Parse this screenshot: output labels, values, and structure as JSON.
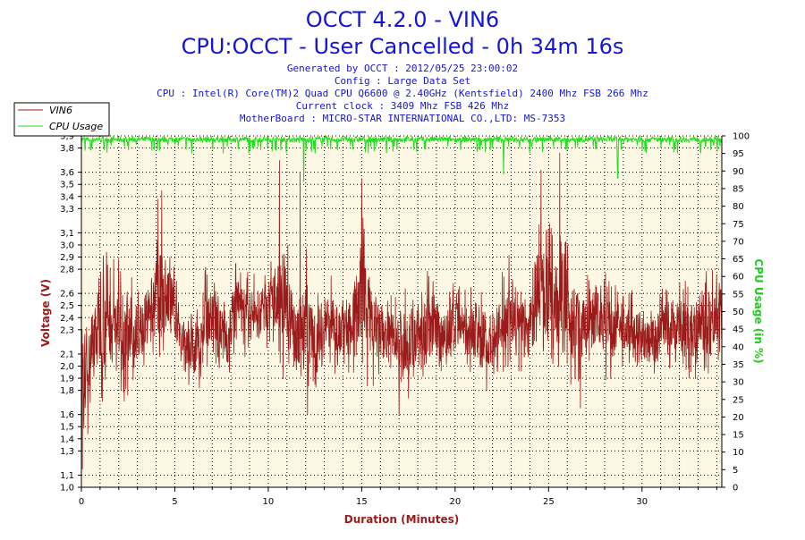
{
  "header": {
    "title": "OCCT 4.2.0 - VIN6",
    "subtitle": "CPU:OCCT - User Cancelled - 0h 34m 16s",
    "info_lines": [
      "Generated by OCCT : 2012/05/25 23:00:02",
      "Config : Large Data Set",
      "CPU : Intel(R) Core(TM)2 Quad CPU Q6600 @ 2.40GHz (Kentsfield) 2400 Mhz FSB 266 Mhz",
      "Current clock : 3409 Mhz FSB 426 Mhz",
      "MotherBoard : MICRO-STAR INTERNATIONAL CO.,LTD: MS-7353"
    ]
  },
  "colors": {
    "plot_background": "#fdf8e4",
    "voltage_line": "#9b1b1b",
    "cpu_line": "#22dd22",
    "title_text": "#1515d6",
    "grid": "#000000"
  },
  "chart_data": {
    "type": "line",
    "xlabel": "Duration (Minutes)",
    "ylabel": "Voltage (V)",
    "y2label": "CPU Usage (in %)",
    "xlim": [
      0,
      34.27
    ],
    "ylim": [
      1.0,
      3.9
    ],
    "y2lim": [
      0,
      100
    ],
    "x_ticks": [
      0,
      5,
      10,
      15,
      20,
      25,
      30
    ],
    "y_ticks": [
      "1,0",
      "1,1",
      "1,3",
      "1,4",
      "1,5",
      "1,6",
      "1,8",
      "1,9",
      "2,0",
      "2,1",
      "2,3",
      "2,4",
      "2,5",
      "2,6",
      "2,8",
      "2,9",
      "3,0",
      "3,1",
      "3,3",
      "3,4",
      "3,5",
      "3,6",
      "3,8",
      "3,9"
    ],
    "y2_ticks": [
      0,
      5,
      10,
      15,
      20,
      25,
      30,
      35,
      40,
      45,
      50,
      55,
      60,
      65,
      70,
      75,
      80,
      85,
      90,
      95,
      100
    ],
    "grid": true,
    "legend_position": "top-left",
    "series": [
      {
        "name": "VIN6",
        "axis": "left",
        "x": [
          0,
          0.4,
          0.8,
          1.2,
          1.6,
          2.0,
          2.4,
          2.8,
          3.2,
          3.6,
          4.0,
          4.4,
          4.8,
          5.2,
          5.6,
          6.0,
          6.4,
          6.8,
          7.2,
          7.6,
          8.0,
          8.4,
          8.8,
          9.2,
          9.6,
          10.0,
          10.4,
          10.8,
          11.2,
          11.6,
          12.0,
          12.4,
          12.8,
          13.2,
          13.6,
          14.0,
          14.4,
          14.8,
          15.2,
          15.6,
          16.0,
          16.4,
          16.8,
          17.2,
          17.6,
          18.0,
          18.4,
          18.8,
          19.2,
          19.6,
          20.0,
          20.4,
          20.8,
          21.2,
          21.6,
          22.0,
          22.4,
          22.8,
          23.2,
          23.6,
          24.0,
          24.4,
          24.8,
          25.2,
          25.6,
          26.0,
          26.4,
          26.8,
          27.2,
          27.6,
          28.0,
          28.4,
          28.8,
          29.2,
          29.6,
          30.0,
          30.4,
          30.8,
          31.2,
          31.6,
          32.0,
          32.4,
          32.8,
          33.2,
          33.6,
          34.0,
          34.27
        ],
        "values": [
          1.1,
          2.4,
          2.0,
          2.6,
          2.2,
          2.3,
          1.9,
          2.5,
          2.1,
          2.4,
          3.3,
          2.2,
          2.8,
          2.3,
          2.0,
          1.9,
          2.1,
          2.2,
          2.0,
          2.5,
          2.3,
          2.1,
          2.2,
          2.4,
          2.0,
          2.6,
          2.3,
          2.2,
          2.4,
          2.3,
          2.1,
          2.2,
          2.0,
          2.3,
          2.2,
          2.4,
          2.1,
          2.6,
          2.2,
          2.0,
          2.3,
          2.5,
          2.2,
          2.4,
          2.1,
          2.3,
          2.0,
          2.2,
          2.4,
          2.1,
          2.3,
          2.2,
          2.0,
          2.3,
          2.4,
          2.2,
          2.1,
          2.3,
          2.2,
          2.0,
          2.4,
          2.3,
          3.2,
          2.3,
          2.5,
          2.2,
          2.1,
          2.3,
          2.0,
          2.2,
          2.3,
          2.1,
          2.5,
          2.2,
          2.3,
          2.4,
          2.2,
          2.1,
          2.3,
          2.4,
          2.0,
          2.3,
          2.4,
          2.2,
          2.1,
          2.2,
          2.0
        ],
        "range": [
          {
            "x": 0.1,
            "lo": 1.1,
            "hi": 2.6
          },
          {
            "x": 0.6,
            "lo": 1.6,
            "hi": 2.8
          },
          {
            "x": 1.2,
            "lo": 1.6,
            "hi": 3.2
          },
          {
            "x": 1.8,
            "lo": 1.7,
            "hi": 3.0
          },
          {
            "x": 2.4,
            "lo": 1.6,
            "hi": 2.9
          },
          {
            "x": 3.0,
            "lo": 1.7,
            "hi": 2.8
          },
          {
            "x": 3.6,
            "lo": 1.9,
            "hi": 2.9
          },
          {
            "x": 4.2,
            "lo": 1.8,
            "hi": 3.4
          },
          {
            "x": 4.8,
            "lo": 2.1,
            "hi": 3.0
          },
          {
            "x": 5.4,
            "lo": 1.9,
            "hi": 2.5
          },
          {
            "x": 6.0,
            "lo": 1.7,
            "hi": 2.6
          },
          {
            "x": 6.6,
            "lo": 1.8,
            "hi": 2.9
          },
          {
            "x": 7.2,
            "lo": 1.8,
            "hi": 2.8
          },
          {
            "x": 7.8,
            "lo": 1.8,
            "hi": 2.7
          },
          {
            "x": 8.4,
            "lo": 2.0,
            "hi": 3.0
          },
          {
            "x": 9.0,
            "lo": 2.0,
            "hi": 2.8
          },
          {
            "x": 9.6,
            "lo": 2.0,
            "hi": 2.9
          },
          {
            "x": 10.2,
            "lo": 2.1,
            "hi": 2.9
          },
          {
            "x": 10.8,
            "lo": 1.8,
            "hi": 3.4
          },
          {
            "x": 11.4,
            "lo": 1.7,
            "hi": 2.8
          },
          {
            "x": 12.0,
            "lo": 1.6,
            "hi": 3.1
          },
          {
            "x": 12.6,
            "lo": 1.7,
            "hi": 2.7
          },
          {
            "x": 13.2,
            "lo": 1.9,
            "hi": 2.8
          },
          {
            "x": 13.8,
            "lo": 1.8,
            "hi": 2.8
          },
          {
            "x": 14.4,
            "lo": 1.8,
            "hi": 2.9
          },
          {
            "x": 15.0,
            "lo": 1.7,
            "hi": 3.5
          },
          {
            "x": 15.6,
            "lo": 1.7,
            "hi": 2.9
          },
          {
            "x": 16.2,
            "lo": 1.8,
            "hi": 2.7
          },
          {
            "x": 16.8,
            "lo": 1.8,
            "hi": 2.7
          },
          {
            "x": 17.4,
            "lo": 1.6,
            "hi": 2.8
          },
          {
            "x": 18.0,
            "lo": 1.8,
            "hi": 2.7
          },
          {
            "x": 18.6,
            "lo": 1.8,
            "hi": 2.9
          },
          {
            "x": 19.2,
            "lo": 1.7,
            "hi": 2.8
          },
          {
            "x": 19.8,
            "lo": 1.8,
            "hi": 2.8
          },
          {
            "x": 20.4,
            "lo": 1.9,
            "hi": 2.7
          },
          {
            "x": 21.0,
            "lo": 1.8,
            "hi": 2.8
          },
          {
            "x": 21.6,
            "lo": 1.7,
            "hi": 2.7
          },
          {
            "x": 22.2,
            "lo": 1.8,
            "hi": 2.6
          },
          {
            "x": 22.8,
            "lo": 1.8,
            "hi": 3.1
          },
          {
            "x": 23.4,
            "lo": 1.8,
            "hi": 2.8
          },
          {
            "x": 24.0,
            "lo": 1.8,
            "hi": 2.8
          },
          {
            "x": 24.6,
            "lo": 1.9,
            "hi": 3.6
          },
          {
            "x": 25.2,
            "lo": 1.8,
            "hi": 3.2
          },
          {
            "x": 25.8,
            "lo": 1.7,
            "hi": 3.3
          },
          {
            "x": 26.4,
            "lo": 1.7,
            "hi": 3.0
          },
          {
            "x": 27.0,
            "lo": 1.8,
            "hi": 2.9
          },
          {
            "x": 27.6,
            "lo": 1.9,
            "hi": 3.0
          },
          {
            "x": 28.2,
            "lo": 1.8,
            "hi": 2.8
          },
          {
            "x": 28.8,
            "lo": 1.9,
            "hi": 2.7
          },
          {
            "x": 29.4,
            "lo": 1.9,
            "hi": 2.7
          },
          {
            "x": 30.0,
            "lo": 1.8,
            "hi": 2.6
          },
          {
            "x": 30.6,
            "lo": 1.8,
            "hi": 2.6
          },
          {
            "x": 31.2,
            "lo": 1.9,
            "hi": 2.7
          },
          {
            "x": 31.8,
            "lo": 1.9,
            "hi": 2.8
          },
          {
            "x": 32.4,
            "lo": 1.8,
            "hi": 2.8
          },
          {
            "x": 33.0,
            "lo": 1.8,
            "hi": 2.9
          },
          {
            "x": 33.6,
            "lo": 1.8,
            "hi": 3.0
          },
          {
            "x": 34.2,
            "lo": 2.0,
            "hi": 2.9
          }
        ],
        "peaks": [
          {
            "x": 4.3,
            "v": 3.45
          },
          {
            "x": 4.1,
            "v": 3.38
          },
          {
            "x": 10.6,
            "v": 3.7
          },
          {
            "x": 11.7,
            "v": 3.6
          },
          {
            "x": 15.0,
            "v": 3.55
          },
          {
            "x": 24.6,
            "v": 3.62
          },
          {
            "x": 25.6,
            "v": 3.76
          },
          {
            "x": 0.05,
            "v": 1.15
          },
          {
            "x": 12.1,
            "v": 1.6
          },
          {
            "x": 17.0,
            "v": 1.6
          },
          {
            "x": 26.7,
            "v": 1.65
          }
        ]
      },
      {
        "name": "CPU Usage",
        "axis": "right",
        "baseline": 99,
        "dips": [
          {
            "x": 0.5,
            "v": 96
          },
          {
            "x": 2.3,
            "v": 97
          },
          {
            "x": 3.9,
            "v": 96
          },
          {
            "x": 5.9,
            "v": 95
          },
          {
            "x": 7.8,
            "v": 97
          },
          {
            "x": 9.6,
            "v": 96
          },
          {
            "x": 11.9,
            "v": 87
          },
          {
            "x": 13.7,
            "v": 96
          },
          {
            "x": 15.5,
            "v": 97
          },
          {
            "x": 17.8,
            "v": 96
          },
          {
            "x": 19.6,
            "v": 97
          },
          {
            "x": 21.2,
            "v": 96
          },
          {
            "x": 22.6,
            "v": 89
          },
          {
            "x": 24.1,
            "v": 97
          },
          {
            "x": 26.0,
            "v": 96
          },
          {
            "x": 27.4,
            "v": 97
          },
          {
            "x": 28.7,
            "v": 88
          },
          {
            "x": 30.2,
            "v": 96
          },
          {
            "x": 31.9,
            "v": 95
          },
          {
            "x": 33.4,
            "v": 97
          }
        ]
      }
    ]
  }
}
